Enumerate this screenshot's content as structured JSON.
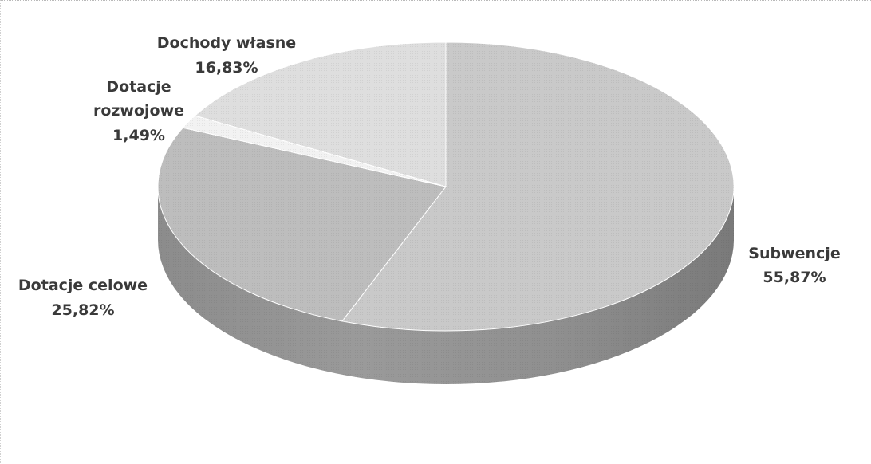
{
  "chart_data": {
    "type": "pie",
    "title": "",
    "slices": [
      {
        "label": "Subwencje",
        "value": 55.87,
        "value_text": "55,87%",
        "color": "#c9c9c9"
      },
      {
        "label": "Dotacje celowe",
        "value": 25.82,
        "value_text": "25,82%",
        "color": "#bdbdbd"
      },
      {
        "label": "Dotacje rozwojowe",
        "label_lines": [
          "Dotacje",
          "rozwojowe"
        ],
        "value": 1.49,
        "value_text": "1,49%",
        "color": "#f2f2f2"
      },
      {
        "label": "Dochody własne",
        "value": 16.83,
        "value_text": "16,83%",
        "color": "#dedede"
      }
    ],
    "legend": "none",
    "style": "3d-pie"
  }
}
